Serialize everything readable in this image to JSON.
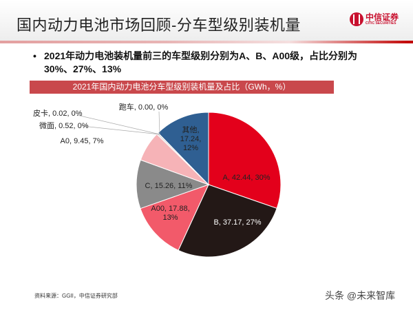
{
  "header": {
    "title": "国内动力电池市场回顾-分车型级别装机量",
    "logo": {
      "cn": "中信证券",
      "en": "CITIC SECURITIES"
    }
  },
  "bullet": {
    "marker": "•",
    "text": "2021年动力电池装机量前三的车型级别分别为A、B、A00级，占比分别为30%、27%、13%"
  },
  "chart_data": {
    "type": "pie",
    "title": "2021年国内动力电池分车型级别装机量及占比（GWh，%）",
    "start": "top",
    "direction": "clockwise",
    "slices": [
      {
        "name": "A",
        "value": 42.44,
        "percent": "30%",
        "label": "A, 42.44, 30%",
        "color": "#e3001b"
      },
      {
        "name": "B",
        "value": 37.17,
        "percent": "27%",
        "label": "B, 37.17, 27%",
        "color": "#231816"
      },
      {
        "name": "A00",
        "value": 17.88,
        "percent": "13%",
        "label": "A00, 17.88, 13%",
        "color": "#f25a6a"
      },
      {
        "name": "C",
        "value": 15.26,
        "percent": "11%",
        "label": "C, 15.26, 11%",
        "color": "#8a8a8a"
      },
      {
        "name": "A0",
        "value": 9.45,
        "percent": "7%",
        "label": "A0, 9.45, 7%",
        "color": "#f6b3b7"
      },
      {
        "name": "微面",
        "value": 0.52,
        "percent": "0%",
        "label": "微面, 0.52, 0%",
        "color": "#d9d9d9"
      },
      {
        "name": "皮卡",
        "value": 0.02,
        "percent": "0%",
        "label": "皮卡, 0.02, 0%",
        "color": "#bfbfbf"
      },
      {
        "name": "跑车",
        "value": 0.0,
        "percent": "0%",
        "label": "跑车, 0.00, 0%",
        "color": "#a0a0a0"
      },
      {
        "name": "其他",
        "value": 17.24,
        "percent": "12%",
        "label": "其他, 17.24, 12%",
        "color": "#2f5f92"
      }
    ]
  },
  "footer": {
    "source": "资料来源：GGII，中信证券研究部",
    "watermark": "头条 @未来智库"
  }
}
